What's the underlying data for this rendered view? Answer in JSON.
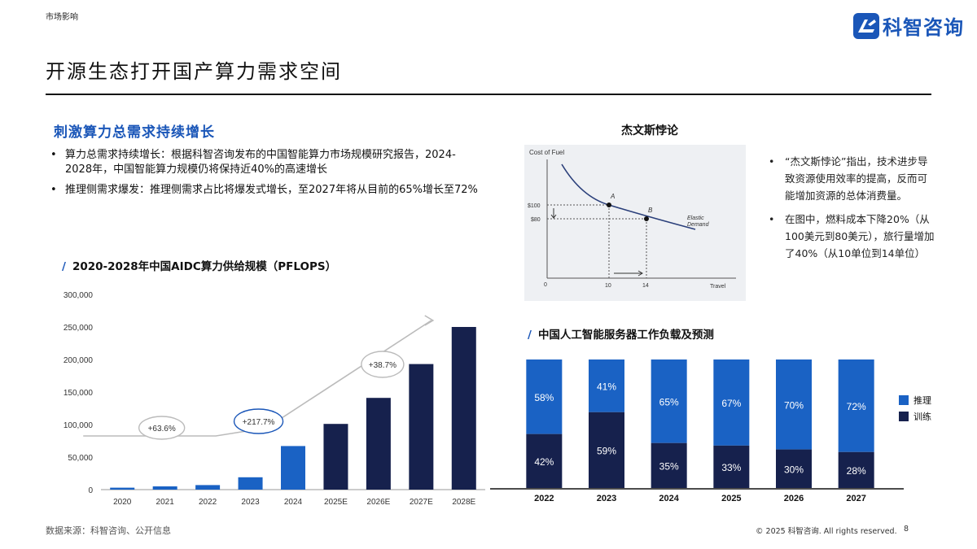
{
  "header": {
    "section_tag": "市场影响",
    "logo_text": "科智咨询",
    "title": "开源生态打开国产算力需求空间"
  },
  "left": {
    "section_title": "刺激算力总需求持续增长",
    "bullets": [
      "算力总需求持续增长：根据科智咨询发布的中国智能算力市场规模研究报告，2024-2028年，中国智能算力规模仍将保持近40%的高速增长",
      "推理侧需求爆发：推理侧需求占比将爆发式增长，至2027年将从目前的65%增长至72%"
    ],
    "bullet_symbol": "•"
  },
  "jevons": {
    "title": "杰文斯悖论",
    "graph": {
      "y_axis_label": "Cost of Fuel",
      "x_axis_label": "Travel",
      "y_ticks": [
        "$100",
        "$80"
      ],
      "x_ticks": [
        "10",
        "14"
      ],
      "origin": "0",
      "point_a": "A",
      "point_b": "B",
      "curve_label_1": "Elastic",
      "curve_label_2": "Demand"
    },
    "bullets": [
      "“杰文斯悖论”指出，技术进步导致资源使用效率的提高，反而可能增加资源的总体消费量。",
      "在图中，燃料成本下降20%（从100美元到80美元），旅行量增加了40%（从10单位到14单位）"
    ]
  },
  "footer": {
    "source": "数据来源：科智咨询、公开信息",
    "copyright": "© 2025 科智咨询. All rights reserved.",
    "page": "8"
  },
  "colors": {
    "accent": "#1a56b8",
    "navy": "#16214d",
    "bar_blue": "#1a62c4",
    "bar_navy": "#16214d"
  },
  "chart_data": [
    {
      "type": "bar",
      "title": "2020-2028年中国AIDC算力供给规模（PFLOPS）",
      "categories": [
        "2020",
        "2021",
        "2022",
        "2023",
        "2024",
        "2025E",
        "2026E",
        "2027E",
        "2028E"
      ],
      "values": [
        3000,
        5000,
        7000,
        19000,
        67000,
        101000,
        141000,
        193000,
        250000
      ],
      "ylim": [
        0,
        300000
      ],
      "y_ticks": [
        "0",
        "50,000",
        "100,000",
        "150,000",
        "200,000",
        "250,000",
        "300,000"
      ],
      "annotations": [
        "+63.6%",
        "+217.7%",
        "+38.7%"
      ],
      "grid": false
    },
    {
      "type": "bar",
      "title": "中国人工智能服务器工作负载及预测",
      "categories": [
        "2022",
        "2023",
        "2024",
        "2025",
        "2026",
        "2027"
      ],
      "series": [
        {
          "name": "推理",
          "values": [
            58,
            41,
            65,
            67,
            70,
            72
          ],
          "labels": [
            "58%",
            "41%",
            "65%",
            "67%",
            "70%",
            "72%"
          ]
        },
        {
          "name": "训练",
          "values": [
            42,
            59,
            35,
            33,
            30,
            28
          ],
          "labels": [
            "42%",
            "59%",
            "35%",
            "33%",
            "30%",
            "28%"
          ]
        }
      ],
      "stacked": true,
      "ylim": [
        0,
        100
      ],
      "legend": "right"
    }
  ]
}
